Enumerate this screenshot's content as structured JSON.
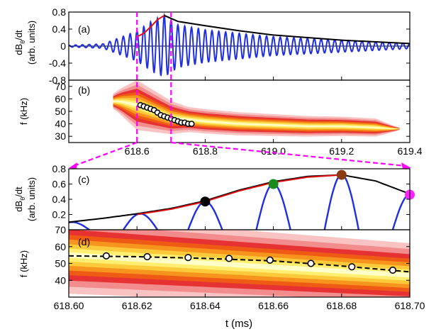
{
  "figure": {
    "colors": {
      "signal": "#1f2fe0",
      "envelope": "#000000",
      "fit": "#e01010",
      "marker_line": "#ff00ff",
      "points": [
        "#000000",
        "#1a8a1a",
        "#8b3a12",
        "#ff22ff"
      ]
    }
  },
  "chart_data": [
    {
      "panel": "(a)",
      "type": "line",
      "ylabel": "dB_θ/dt",
      "ylabel_main": "dB",
      "ylabel_sub": "θ",
      "ylabel_tail": "/dt",
      "ylabel2": "(arb. units)",
      "xlim": [
        618.4,
        619.4
      ],
      "ylim": [
        -0.8,
        0.8
      ],
      "yticks": [
        "0.8",
        "0.4",
        "0",
        "-0.4",
        "-0.8"
      ],
      "ytick_values": [
        0.8,
        0.4,
        0,
        -0.4,
        -0.8
      ],
      "series": [
        {
          "role": "oscillation",
          "color": "#1f2fe0",
          "envelope": {
            "x": [
              618.4,
              618.5,
              618.6,
              618.65,
              618.68,
              618.72,
              618.8,
              619.0,
              619.2,
              619.4
            ],
            "y": [
              0.02,
              0.05,
              0.35,
              0.62,
              0.72,
              0.5,
              0.38,
              0.22,
              0.14,
              0.06
            ]
          },
          "frequency_khz": 50
        },
        {
          "role": "envelope",
          "color": "#000000",
          "x": [
            618.68,
            618.72,
            618.8,
            618.9,
            619.0,
            619.1,
            619.2,
            619.3,
            619.4
          ],
          "y": [
            0.72,
            0.58,
            0.48,
            0.36,
            0.26,
            0.2,
            0.14,
            0.1,
            0.06
          ]
        },
        {
          "role": "fit",
          "color": "#e01010",
          "x": [
            618.6,
            618.62,
            618.64,
            618.66,
            618.68
          ],
          "y": [
            0.22,
            0.3,
            0.45,
            0.62,
            0.72
          ]
        }
      ]
    },
    {
      "panel": "(b)",
      "type": "heatmap",
      "ylabel": "f (kHz)",
      "xlim": [
        618.4,
        619.4
      ],
      "ylim": [
        25,
        75
      ],
      "yticks": [
        "70",
        "60",
        "50",
        "40",
        "30"
      ],
      "ytick_values": [
        70,
        60,
        50,
        40,
        30
      ],
      "xticks": [
        "618.6",
        "618.8",
        "619.0",
        "619.2",
        "619.4"
      ],
      "xtick_values": [
        618.6,
        618.8,
        619.0,
        619.2,
        619.4
      ],
      "ridge": {
        "x": [
          618.55,
          618.6,
          618.65,
          618.7,
          618.8,
          618.9,
          619.0,
          619.1,
          619.2,
          619.3,
          619.35
        ],
        "y": [
          58,
          55,
          50,
          45,
          42,
          40,
          39,
          38,
          38,
          37,
          36
        ]
      },
      "points": {
        "x": [
          618.61,
          618.62,
          618.63,
          618.64,
          618.65,
          618.66,
          618.67,
          618.68,
          618.69,
          618.7,
          618.71,
          618.72,
          618.73,
          618.74,
          618.75,
          618.76
        ],
        "y": [
          55,
          54,
          53,
          52,
          51,
          49,
          47,
          46,
          45,
          44,
          43,
          42,
          41,
          41,
          40,
          40
        ]
      }
    },
    {
      "panel": "(c)",
      "type": "line",
      "ylabel": "dB_θ/dt",
      "ylabel_main": "dB",
      "ylabel_sub": "θ",
      "ylabel_tail": "/dt",
      "ylabel2": "(arb. units)",
      "xlim": [
        618.6,
        618.7
      ],
      "ylim": [
        0.0,
        0.8
      ],
      "yticks": [
        "0.8",
        "0.6",
        "0.4",
        "0.2"
      ],
      "ytick_values": [
        0.8,
        0.6,
        0.4,
        0.2
      ],
      "series": [
        {
          "role": "envelope",
          "color": "#000000",
          "x": [
            618.6,
            618.61,
            618.62,
            618.63,
            618.64,
            618.65,
            618.66,
            618.67,
            618.68,
            618.69,
            618.7
          ],
          "y": [
            0.1,
            0.15,
            0.21,
            0.28,
            0.38,
            0.52,
            0.63,
            0.7,
            0.72,
            0.64,
            0.47
          ]
        },
        {
          "role": "fit",
          "color": "#e01010",
          "x": [
            618.62,
            618.63,
            618.64,
            618.65,
            618.66,
            618.67,
            618.68
          ],
          "y": [
            0.2,
            0.27,
            0.37,
            0.51,
            0.62,
            0.69,
            0.72
          ]
        },
        {
          "role": "oscillation-peaks",
          "color": "#1f2fe0",
          "x": [
            618.601,
            618.621,
            618.64,
            618.66,
            618.68,
            618.7
          ],
          "y": [
            0.1,
            0.21,
            0.37,
            0.6,
            0.72,
            0.46
          ]
        }
      ],
      "markers": {
        "x": [
          618.64,
          618.66,
          618.68,
          618.7
        ],
        "y": [
          0.37,
          0.6,
          0.72,
          0.46
        ],
        "colors": [
          "#000000",
          "#1a8a1a",
          "#8b3a12",
          "#ff22ff"
        ]
      }
    },
    {
      "panel": "(d)",
      "type": "heatmap",
      "ylabel": "f (kHz)",
      "xlabel": "t (ms)",
      "xlim": [
        618.6,
        618.7
      ],
      "ylim": [
        30,
        70
      ],
      "yticks": [
        "70",
        "60",
        "50",
        "40"
      ],
      "ytick_values": [
        70,
        60,
        50,
        40
      ],
      "xticks": [
        "618.60",
        "618.62",
        "618.64",
        "618.66",
        "618.68",
        "618.70"
      ],
      "xtick_values": [
        618.6,
        618.62,
        618.64,
        618.66,
        618.68,
        618.7
      ],
      "ridge": {
        "x": [
          618.6,
          618.7
        ],
        "y": [
          55,
          43
        ]
      },
      "dashed": {
        "x": [
          618.6,
          618.62,
          618.64,
          618.66,
          618.68,
          618.7
        ],
        "y": [
          54.5,
          54,
          53,
          51.5,
          48.5,
          45
        ]
      },
      "points": {
        "x": [
          618.611,
          618.623,
          618.635,
          618.647,
          618.659,
          618.671,
          618.683,
          618.695
        ],
        "y": [
          54.5,
          54,
          53.5,
          53,
          52,
          50,
          48,
          46
        ]
      }
    }
  ]
}
